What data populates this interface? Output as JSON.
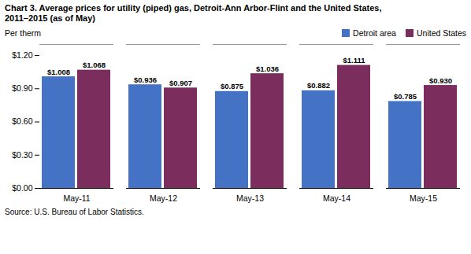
{
  "chart_data": {
    "type": "bar",
    "title": "Chart 3. Average prices for utility (piped) gas, Detroit-Ann Arbor-Flint and the United States,",
    "subtitle": "2011–2015  (as of May)",
    "ylabel": "Per therm",
    "source": "Source: U.S. Bureau of Labor Statistics.",
    "categories": [
      "May-11",
      "May-12",
      "May-13",
      "May-14",
      "May-15"
    ],
    "series": [
      {
        "name": "Detroit area",
        "color": "#4472C4",
        "values": [
          1.008,
          0.936,
          0.875,
          0.882,
          0.785
        ],
        "value_labels": [
          "$1.008",
          "$0.936",
          "$0.875",
          "$0.882",
          "$0.785"
        ]
      },
      {
        "name": "United States",
        "color": "#7B2D5E",
        "values": [
          1.068,
          0.907,
          1.036,
          1.111,
          0.93
        ],
        "value_labels": [
          "$1.068",
          "$0.907",
          "$1.036",
          "$1.111",
          "$0.930"
        ]
      }
    ],
    "ylim": [
      0.0,
      1.3
    ],
    "yticks": [
      {
        "value": 0.0,
        "label": "$0.00"
      },
      {
        "value": 0.3,
        "label": "$0.30"
      },
      {
        "value": 0.6,
        "label": "$0.60"
      },
      {
        "value": 0.9,
        "label": "$0.90"
      },
      {
        "value": 1.2,
        "label": "$1.20"
      }
    ],
    "data_labels": true,
    "legend": "upper right",
    "grid": false
  }
}
